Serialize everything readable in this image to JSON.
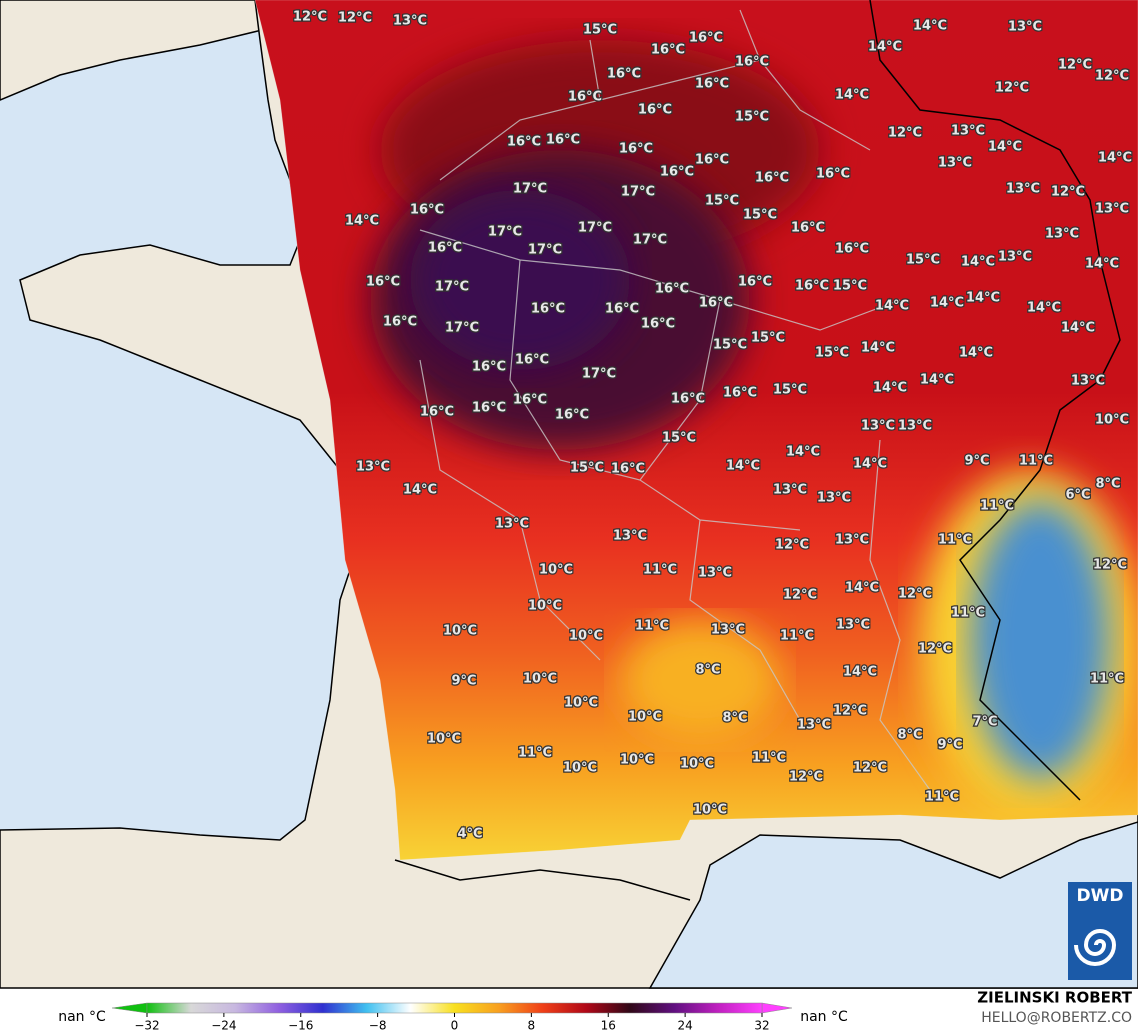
{
  "map": {
    "labels": [
      "12°C",
      "12°C",
      "13°C",
      "15°C",
      "16°C",
      "16°C",
      "16°C",
      "14°C",
      "13°C",
      "14°C",
      "12°C",
      "12°C",
      "12°C",
      "16°C",
      "16°C",
      "16°C",
      "16°C",
      "14°C",
      "15°C",
      "12°C",
      "13°C",
      "14°C",
      "16°C",
      "16°C",
      "16°C",
      "16°C",
      "16°C",
      "13°C",
      "14°C",
      "16°C",
      "16°C",
      "17°C",
      "17°C",
      "13°C",
      "12°C",
      "14°C",
      "16°C",
      "15°C",
      "15°C",
      "16°C",
      "13°C",
      "17°C",
      "17°C",
      "17°C",
      "17°C",
      "16°C",
      "16°C",
      "15°C",
      "14°C",
      "13°C",
      "13°C",
      "14°C",
      "16°C",
      "17°C",
      "16°C",
      "16°C",
      "16°C",
      "15°C",
      "16°C",
      "16°C",
      "16°C",
      "14°C",
      "14°C",
      "14°C",
      "14°C",
      "16°C",
      "17°C",
      "16°C",
      "15°C",
      "15°C",
      "15°C",
      "14°C",
      "14°C",
      "14°C",
      "16°C",
      "16°C",
      "17°C",
      "16°C",
      "16°C",
      "15°C",
      "14°C",
      "14°C",
      "13°C",
      "16°C",
      "16°C",
      "16°C",
      "16°C",
      "15°C",
      "13°C",
      "13°C",
      "10°C",
      "13°C",
      "15°C",
      "16°C",
      "14°C",
      "14°C",
      "14°C",
      "9°C",
      "11°C",
      "14°C",
      "13°C",
      "13°C",
      "6°C",
      "8°C",
      "13°C",
      "11°C",
      "13°C",
      "12°C",
      "13°C",
      "11°C",
      "10°C",
      "11°C",
      "13°C",
      "12°C",
      "14°C",
      "12°C",
      "12°C",
      "10°C",
      "10°C",
      "11°C",
      "13°C",
      "11°C",
      "13°C",
      "11°C",
      "10°C",
      "12°C",
      "8°C",
      "14°C",
      "9°C",
      "10°C",
      "10°C",
      "10°C",
      "8°C",
      "13°C",
      "12°C",
      "11°C",
      "7°C",
      "10°C",
      "11°C",
      "8°C",
      "9°C",
      "10°C",
      "10°C",
      "10°C",
      "11°C",
      "12°C",
      "12°C",
      "10°C",
      "11°C",
      "4°C"
    ]
  },
  "colorbar": {
    "min_label": "nan °C",
    "max_label": "nan °C",
    "lim": [
      -32,
      32
    ],
    "ticks": [
      {
        "value": -32,
        "label": "−32"
      },
      {
        "value": -24,
        "label": "−24"
      },
      {
        "value": -16,
        "label": "−16"
      },
      {
        "value": -8,
        "label": "−8"
      },
      0,
      8,
      16,
      24,
      32
    ],
    "colors": [
      "#10c010",
      "#d8d8d8",
      "#c8b8e0",
      "#9060e0",
      "#3030d0",
      "#40c0f0",
      "#ffffff",
      "#f8e020",
      "#f8a020",
      "#f04018",
      "#b00818",
      "#300818",
      "#601080",
      "#c020c0",
      "#ff40ff"
    ]
  },
  "credit": {
    "name": "ZIELINSKI ROBERT",
    "contact": "HELLO@ROBERTZ.CO"
  },
  "logo": {
    "text": "DWD"
  }
}
